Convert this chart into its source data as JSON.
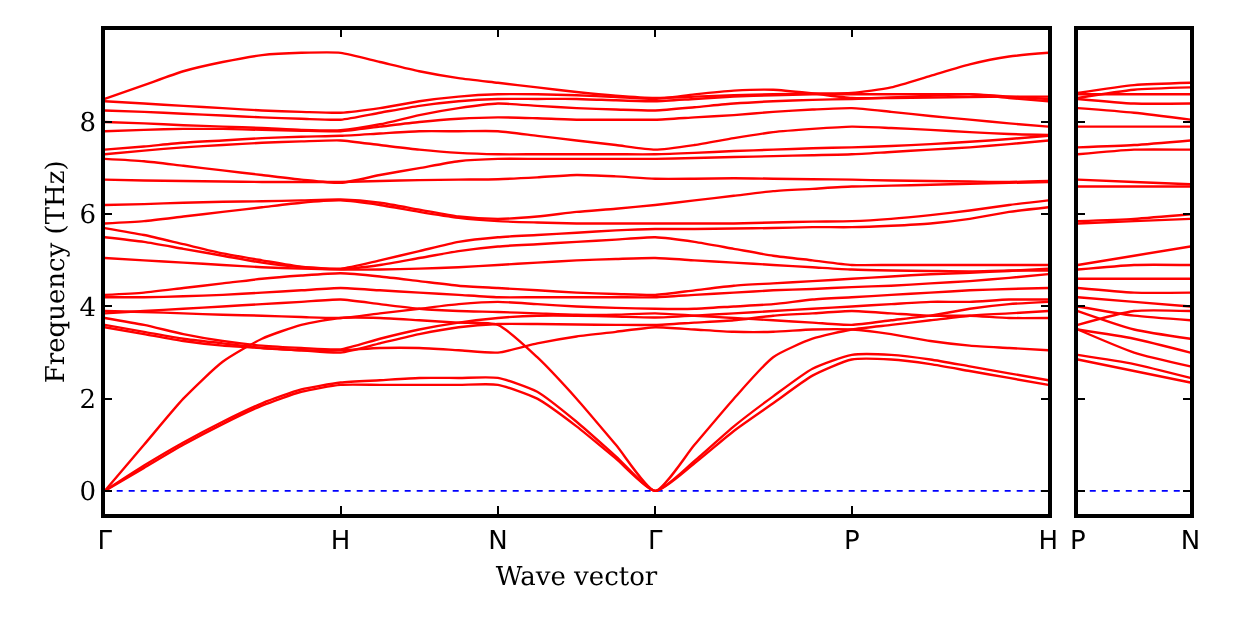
{
  "chart_data": [
    {
      "type": "line",
      "xlabel": "Wave vector",
      "ylabel": "Frequency (THz)",
      "categories": [
        "Γ",
        null,
        null,
        null,
        null,
        null,
        "H",
        null,
        null,
        null,
        "N",
        null,
        null,
        null,
        "Γ",
        null,
        null,
        null,
        null,
        "P",
        null,
        null,
        null,
        null,
        "H"
      ],
      "ylim": [
        -0.5,
        10
      ],
      "yticks": [
        0,
        2,
        4,
        6,
        8
      ],
      "grid": false,
      "line_style": "solid",
      "ref_lines": [
        {
          "axis": "y",
          "value": 0,
          "color": "#0000ff",
          "line_style": "dotted"
        }
      ],
      "series": [
        {
          "color": "#ff0000",
          "values": [
            0,
            0.5,
            1.0,
            1.45,
            1.85,
            2.15,
            2.3,
            2.3,
            2.3,
            2.3,
            2.3,
            2.0,
            1.4,
            0.7,
            0,
            0.6,
            1.3,
            1.9,
            2.5,
            2.85,
            2.85,
            2.75,
            2.6,
            2.45,
            2.3
          ]
        },
        {
          "color": "#ff0000",
          "values": [
            0,
            0.55,
            1.05,
            1.5,
            1.9,
            2.2,
            2.35,
            2.4,
            2.45,
            2.45,
            2.45,
            2.15,
            1.5,
            0.75,
            0,
            0.65,
            1.4,
            2.05,
            2.65,
            2.95,
            2.95,
            2.85,
            2.7,
            2.55,
            2.4
          ]
        },
        {
          "color": "#ff0000",
          "values": [
            0,
            1.0,
            2.0,
            2.8,
            3.3,
            3.6,
            3.75,
            3.75,
            3.7,
            3.65,
            3.6,
            2.9,
            2.0,
            1.0,
            0,
            1.0,
            2.0,
            2.9,
            3.3,
            3.5,
            3.6,
            3.7,
            3.8,
            3.85,
            3.9
          ]
        },
        {
          "color": "#ff0000",
          "values": [
            3.55,
            3.4,
            3.25,
            3.15,
            3.1,
            3.05,
            3.05,
            3.1,
            3.1,
            3.05,
            3.0,
            3.2,
            3.35,
            3.45,
            3.55,
            3.5,
            3.45,
            3.45,
            3.5,
            3.5,
            3.4,
            3.25,
            3.15,
            3.1,
            3.05
          ]
        },
        {
          "color": "#ff0000",
          "values": [
            3.6,
            3.45,
            3.3,
            3.2,
            3.1,
            3.05,
            3.0,
            3.2,
            3.4,
            3.55,
            3.62,
            3.62,
            3.61,
            3.6,
            3.6,
            3.65,
            3.7,
            3.8,
            3.85,
            3.9,
            3.85,
            3.8,
            3.8,
            3.75,
            3.75
          ]
        },
        {
          "color": "#ff0000",
          "values": [
            3.75,
            3.6,
            3.4,
            3.25,
            3.15,
            3.1,
            3.07,
            3.3,
            3.5,
            3.65,
            3.75,
            3.8,
            3.8,
            3.78,
            3.76,
            3.8,
            3.85,
            3.9,
            3.95,
            4.0,
            4.05,
            4.1,
            4.1,
            4.15,
            4.15
          ]
        },
        {
          "color": "#ff0000",
          "values": [
            3.85,
            3.9,
            3.95,
            4.0,
            4.05,
            4.1,
            4.15,
            4.05,
            3.95,
            3.9,
            3.88,
            3.85,
            3.82,
            3.82,
            3.85,
            3.8,
            3.75,
            3.7,
            3.65,
            3.6,
            3.7,
            3.8,
            3.95,
            4.05,
            4.1
          ]
        },
        {
          "color": "#ff0000",
          "values": [
            3.9,
            3.88,
            3.85,
            3.82,
            3.8,
            3.77,
            3.75,
            3.85,
            3.95,
            4.05,
            4.1,
            4.05,
            4.0,
            3.97,
            3.95,
            3.95,
            4.0,
            4.05,
            4.15,
            4.2,
            4.25,
            4.3,
            4.35,
            4.38,
            4.4
          ]
        },
        {
          "color": "#ff0000",
          "values": [
            4.2,
            4.2,
            4.22,
            4.25,
            4.3,
            4.35,
            4.4,
            4.35,
            4.3,
            4.25,
            4.2,
            4.2,
            4.2,
            4.2,
            4.2,
            4.25,
            4.3,
            4.35,
            4.38,
            4.42,
            4.45,
            4.5,
            4.55,
            4.62,
            4.7
          ]
        },
        {
          "color": "#ff0000",
          "values": [
            4.25,
            4.3,
            4.4,
            4.5,
            4.6,
            4.67,
            4.72,
            4.65,
            4.55,
            4.45,
            4.4,
            4.35,
            4.3,
            4.27,
            4.25,
            4.35,
            4.45,
            4.5,
            4.55,
            4.6,
            4.65,
            4.7,
            4.73,
            4.77,
            4.82
          ]
        },
        {
          "color": "#ff0000",
          "values": [
            5.05,
            5.0,
            4.95,
            4.9,
            4.85,
            4.82,
            4.8,
            4.8,
            4.82,
            4.85,
            4.9,
            4.95,
            5.0,
            5.03,
            5.05,
            5.0,
            4.95,
            4.9,
            4.85,
            4.8,
            4.78,
            4.77,
            4.76,
            4.78,
            4.78
          ]
        },
        {
          "color": "#ff0000",
          "values": [
            5.5,
            5.4,
            5.25,
            5.1,
            4.95,
            4.85,
            4.81,
            4.9,
            5.05,
            5.2,
            5.3,
            5.35,
            5.4,
            5.45,
            5.5,
            5.4,
            5.25,
            5.1,
            5.0,
            4.9,
            4.9,
            4.9,
            4.9,
            4.9,
            4.9
          ]
        },
        {
          "color": "#ff0000",
          "values": [
            5.7,
            5.55,
            5.35,
            5.15,
            5.0,
            4.86,
            4.82,
            5.0,
            5.2,
            5.4,
            5.5,
            5.55,
            5.6,
            5.65,
            5.68,
            5.68,
            5.69,
            5.7,
            5.72,
            5.72,
            5.75,
            5.8,
            5.9,
            6.05,
            6.15
          ]
        },
        {
          "color": "#ff0000",
          "values": [
            5.8,
            5.85,
            5.95,
            6.05,
            6.15,
            6.25,
            6.3,
            6.2,
            6.05,
            5.92,
            5.85,
            5.82,
            5.8,
            5.8,
            5.8,
            5.8,
            5.8,
            5.82,
            5.84,
            5.85,
            5.9,
            5.98,
            6.08,
            6.2,
            6.3
          ]
        },
        {
          "color": "#ff0000",
          "values": [
            6.2,
            6.22,
            6.25,
            6.27,
            6.28,
            6.3,
            6.32,
            6.25,
            6.1,
            5.95,
            5.9,
            5.95,
            6.05,
            6.12,
            6.2,
            6.3,
            6.4,
            6.5,
            6.55,
            6.6,
            6.62,
            6.64,
            6.66,
            6.68,
            6.7
          ]
        },
        {
          "color": "#ff0000",
          "values": [
            6.75,
            6.73,
            6.72,
            6.71,
            6.7,
            6.7,
            6.7,
            6.72,
            6.74,
            6.75,
            6.76,
            6.8,
            6.85,
            6.82,
            6.77,
            6.77,
            6.78,
            6.77,
            6.76,
            6.75,
            6.73,
            6.72,
            6.71,
            6.7,
            6.72
          ]
        },
        {
          "color": "#ff0000",
          "values": [
            7.2,
            7.15,
            7.05,
            6.95,
            6.85,
            6.75,
            6.68,
            6.85,
            7.0,
            7.15,
            7.2,
            7.2,
            7.2,
            7.2,
            7.2,
            7.22,
            7.24,
            7.26,
            7.28,
            7.3,
            7.35,
            7.4,
            7.45,
            7.52,
            7.6
          ]
        },
        {
          "color": "#ff0000",
          "values": [
            7.3,
            7.38,
            7.45,
            7.5,
            7.55,
            7.58,
            7.6,
            7.5,
            7.4,
            7.33,
            7.3,
            7.3,
            7.3,
            7.3,
            7.3,
            7.33,
            7.37,
            7.4,
            7.43,
            7.45,
            7.48,
            7.52,
            7.57,
            7.63,
            7.7
          ]
        },
        {
          "color": "#ff0000",
          "values": [
            7.4,
            7.47,
            7.55,
            7.6,
            7.65,
            7.68,
            7.7,
            7.75,
            7.8,
            7.8,
            7.8,
            7.7,
            7.6,
            7.5,
            7.4,
            7.5,
            7.65,
            7.78,
            7.85,
            7.9,
            7.87,
            7.83,
            7.78,
            7.74,
            7.72
          ]
        },
        {
          "color": "#ff0000",
          "values": [
            7.8,
            7.83,
            7.85,
            7.85,
            7.83,
            7.81,
            7.8,
            7.9,
            8.0,
            8.07,
            8.1,
            8.08,
            8.05,
            8.05,
            8.05,
            8.1,
            8.15,
            8.22,
            8.27,
            8.3,
            8.22,
            8.13,
            8.05,
            7.97,
            7.9
          ]
        },
        {
          "color": "#ff0000",
          "values": [
            8.0,
            7.97,
            7.93,
            7.9,
            7.87,
            7.83,
            7.82,
            7.95,
            8.15,
            8.3,
            8.4,
            8.35,
            8.3,
            8.27,
            8.25,
            8.32,
            8.4,
            8.45,
            8.48,
            8.5,
            8.53,
            8.57,
            8.6,
            8.52,
            8.45
          ]
        },
        {
          "color": "#ff0000",
          "values": [
            8.25,
            8.22,
            8.18,
            8.14,
            8.1,
            8.07,
            8.05,
            8.2,
            8.35,
            8.45,
            8.5,
            8.5,
            8.5,
            8.47,
            8.45,
            8.5,
            8.55,
            8.58,
            8.6,
            8.6,
            8.6,
            8.6,
            8.6,
            8.55,
            8.5
          ]
        },
        {
          "color": "#ff0000",
          "values": [
            8.45,
            8.4,
            8.35,
            8.3,
            8.25,
            8.22,
            8.2,
            8.3,
            8.45,
            8.55,
            8.6,
            8.6,
            8.58,
            8.54,
            8.5,
            8.6,
            8.68,
            8.7,
            8.62,
            8.52,
            8.52,
            8.53,
            8.54,
            8.55,
            8.55
          ]
        },
        {
          "color": "#ff0000",
          "values": [
            8.5,
            8.8,
            9.1,
            9.3,
            9.45,
            9.5,
            9.5,
            9.3,
            9.1,
            8.95,
            8.85,
            8.75,
            8.65,
            8.57,
            8.52,
            8.55,
            8.58,
            8.6,
            8.62,
            8.63,
            8.75,
            9.0,
            9.25,
            9.42,
            9.5
          ]
        }
      ]
    },
    {
      "type": "line",
      "categories": [
        "P",
        null,
        "N"
      ],
      "ylim": [
        -0.5,
        10
      ],
      "yticks": [
        0,
        2,
        4,
        6,
        8
      ],
      "tick_labels": "x",
      "grid": false,
      "line_style": "solid",
      "ref_lines": [
        {
          "axis": "y",
          "value": 0,
          "color": "#0000ff",
          "line_style": "dotted"
        }
      ],
      "series": [
        {
          "color": "#ff0000",
          "values": [
            2.85,
            2.6,
            2.35
          ]
        },
        {
          "color": "#ff0000",
          "values": [
            2.95,
            2.75,
            2.45
          ]
        },
        {
          "color": "#ff0000",
          "values": [
            3.5,
            3.0,
            2.7
          ]
        },
        {
          "color": "#ff0000",
          "values": [
            3.5,
            3.3,
            3.0
          ]
        },
        {
          "color": "#ff0000",
          "values": [
            3.9,
            3.5,
            3.3
          ]
        },
        {
          "color": "#ff0000",
          "values": [
            4.0,
            3.8,
            3.7
          ]
        },
        {
          "color": "#ff0000",
          "values": [
            3.6,
            3.9,
            3.9
          ]
        },
        {
          "color": "#ff0000",
          "values": [
            4.2,
            4.1,
            4.0
          ]
        },
        {
          "color": "#ff0000",
          "values": [
            4.4,
            4.3,
            4.3
          ]
        },
        {
          "color": "#ff0000",
          "values": [
            4.6,
            4.6,
            4.6
          ]
        },
        {
          "color": "#ff0000",
          "values": [
            4.8,
            4.9,
            4.9
          ]
        },
        {
          "color": "#ff0000",
          "values": [
            4.9,
            5.1,
            5.3
          ]
        },
        {
          "color": "#ff0000",
          "values": [
            5.8,
            5.85,
            5.9
          ]
        },
        {
          "color": "#ff0000",
          "values": [
            5.85,
            5.9,
            6.0
          ]
        },
        {
          "color": "#ff0000",
          "values": [
            6.6,
            6.6,
            6.6
          ]
        },
        {
          "color": "#ff0000",
          "values": [
            6.75,
            6.7,
            6.65
          ]
        },
        {
          "color": "#ff0000",
          "values": [
            7.3,
            7.4,
            7.4
          ]
        },
        {
          "color": "#ff0000",
          "values": [
            7.45,
            7.5,
            7.6
          ]
        },
        {
          "color": "#ff0000",
          "values": [
            7.9,
            7.9,
            7.9
          ]
        },
        {
          "color": "#ff0000",
          "values": [
            8.3,
            8.2,
            8.05
          ]
        },
        {
          "color": "#ff0000",
          "values": [
            8.5,
            8.4,
            8.4
          ]
        },
        {
          "color": "#ff0000",
          "values": [
            8.6,
            8.6,
            8.6
          ]
        },
        {
          "color": "#ff0000",
          "values": [
            8.52,
            8.7,
            8.75
          ]
        },
        {
          "color": "#ff0000",
          "values": [
            8.63,
            8.8,
            8.85
          ]
        }
      ]
    }
  ]
}
